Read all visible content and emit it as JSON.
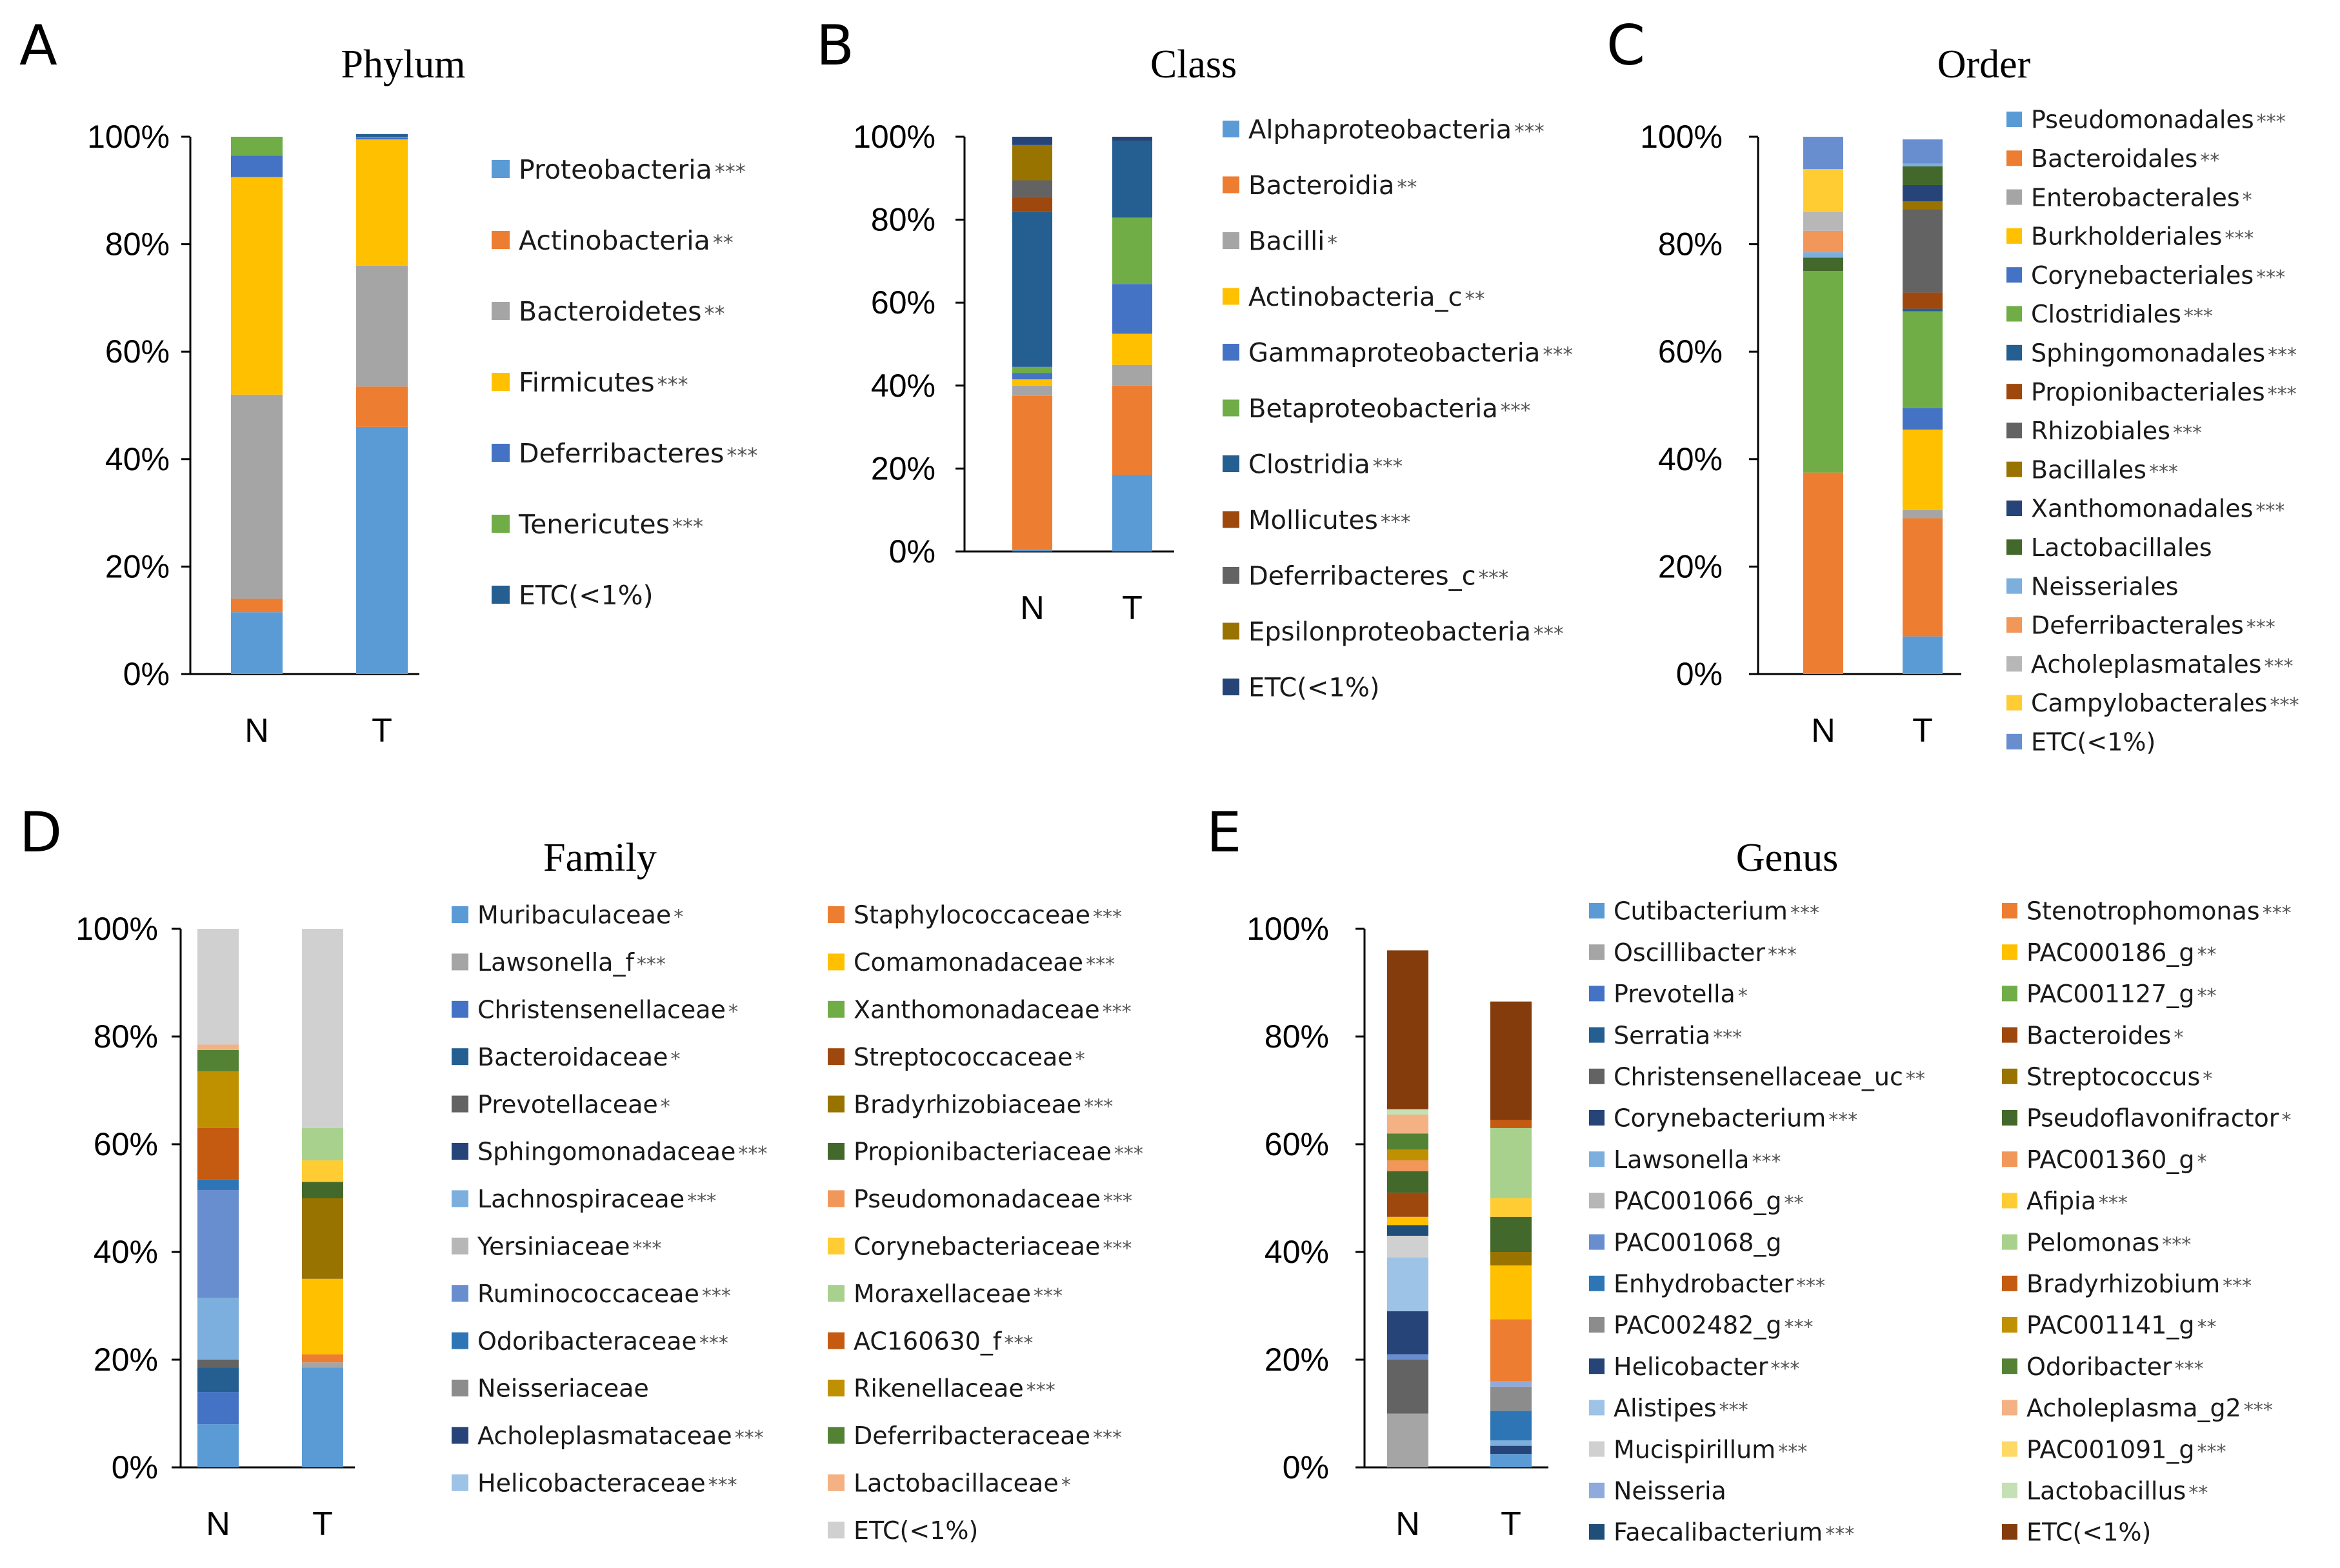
{
  "panel_labels": [
    "A",
    "B",
    "C",
    "D",
    "E"
  ],
  "colors": {
    "blue": "#5b9bd5",
    "orange": "#ed7d31",
    "gray": "#a5a5a5",
    "gold": "#ffc000",
    "royal": "#4472c4",
    "green": "#70ad47",
    "navy": "#255e91",
    "rust": "#9e480e",
    "dgray": "#636363",
    "olive": "#997300",
    "dnavy": "#264478",
    "dgreen": "#43682b",
    "lblue": "#7cafdd",
    "salmon": "#f1975a",
    "lgray": "#b7b7b7",
    "yellow": "#ffcd33",
    "periwinkle": "#698ed0",
    "mgray": "#8c8c8c",
    "sky": "#9dc3e6",
    "pale": "#d0d0d0",
    "lavender": "#8faadc",
    "teal": "#1f4e79",
    "peach": "#f4b183",
    "lgreen": "#a9d18e",
    "brown": "#843c0c",
    "lgold": "#ffd966",
    "blue2": "#2e75b6",
    "orange2": "#c55a11",
    "green2": "#548235",
    "gold2": "#bf9000"
  },
  "chart_data": [
    {
      "id": "A",
      "type": "bar",
      "stacked": true,
      "percent": true,
      "title": "Phylum",
      "categories": [
        "N",
        "T"
      ],
      "yticks": [
        "0%",
        "20%",
        "40%",
        "60%",
        "80%",
        "100%"
      ],
      "ylim": [
        0,
        100
      ],
      "legend_position": "right",
      "series": [
        {
          "name": "Proteobacteria",
          "sig": "***",
          "color": "#5b9bd5",
          "values": [
            11.5,
            46.0
          ]
        },
        {
          "name": "Actinobacteria",
          "sig": "**",
          "color": "#ed7d31",
          "values": [
            2.5,
            7.5
          ]
        },
        {
          "name": "Bacteroidetes",
          "sig": "**",
          "color": "#a5a5a5",
          "values": [
            38.0,
            22.5
          ]
        },
        {
          "name": "Firmicutes",
          "sig": "***",
          "color": "#ffc000",
          "values": [
            40.5,
            23.5
          ]
        },
        {
          "name": "Deferribacteres",
          "sig": "***",
          "color": "#4472c4",
          "values": [
            4.0,
            0.3
          ]
        },
        {
          "name": "Tenericutes",
          "sig": "***",
          "color": "#70ad47",
          "values": [
            3.5,
            0.1
          ]
        },
        {
          "name": "ETC(<1%)",
          "sig": "",
          "color": "#255e91",
          "values": [
            0.0,
            0.6
          ]
        }
      ]
    },
    {
      "id": "B",
      "type": "bar",
      "stacked": true,
      "percent": true,
      "title": "Class",
      "categories": [
        "N",
        "T"
      ],
      "yticks": [
        "0%",
        "20%",
        "40%",
        "60%",
        "80%",
        "100%"
      ],
      "ylim": [
        0,
        100
      ],
      "legend_position": "right",
      "series": [
        {
          "name": "Alphaproteobacteria",
          "sig": "***",
          "color": "#5b9bd5",
          "values": [
            0.5,
            18.5
          ]
        },
        {
          "name": "Bacteroidia",
          "sig": "**",
          "color": "#ed7d31",
          "values": [
            37.0,
            21.5
          ]
        },
        {
          "name": "Bacilli",
          "sig": "*",
          "color": "#a5a5a5",
          "values": [
            2.5,
            5.0
          ]
        },
        {
          "name": "Actinobacteria_c",
          "sig": "**",
          "color": "#ffc000",
          "values": [
            1.5,
            7.5
          ]
        },
        {
          "name": "Gammaproteobacteria",
          "sig": "***",
          "color": "#4472c4",
          "values": [
            1.5,
            12.0
          ]
        },
        {
          "name": "Betaproteobacteria",
          "sig": "***",
          "color": "#70ad47",
          "values": [
            1.5,
            16.0
          ]
        },
        {
          "name": "Clostridia",
          "sig": "***",
          "color": "#255e91",
          "values": [
            37.5,
            18.5
          ]
        },
        {
          "name": "Mollicutes",
          "sig": "***",
          "color": "#9e480e",
          "values": [
            3.5,
            0.0
          ]
        },
        {
          "name": "Deferribacteres_c",
          "sig": "***",
          "color": "#636363",
          "values": [
            4.0,
            0.0
          ]
        },
        {
          "name": "Epsilonproteobacteria",
          "sig": "***",
          "color": "#997300",
          "values": [
            8.5,
            0.0
          ]
        },
        {
          "name": "ETC(<1%)",
          "sig": "",
          "color": "#264478",
          "values": [
            2.0,
            1.0
          ]
        }
      ]
    },
    {
      "id": "C",
      "type": "bar",
      "stacked": true,
      "percent": true,
      "title": "Order",
      "categories": [
        "N",
        "T"
      ],
      "yticks": [
        "0%",
        "20%",
        "40%",
        "60%",
        "80%",
        "100%"
      ],
      "ylim": [
        0,
        100
      ],
      "legend_position": "right",
      "series": [
        {
          "name": "Pseudomonadales",
          "sig": "***",
          "color": "#5b9bd5",
          "values": [
            0.0,
            7.0
          ]
        },
        {
          "name": "Bacteroidales",
          "sig": "**",
          "color": "#ed7d31",
          "values": [
            37.5,
            22.0
          ]
        },
        {
          "name": "Enterobacterales",
          "sig": "*",
          "color": "#a5a5a5",
          "values": [
            0.0,
            1.5
          ]
        },
        {
          "name": "Burkholderiales",
          "sig": "***",
          "color": "#ffc000",
          "values": [
            0.0,
            15.0
          ]
        },
        {
          "name": "Corynebacteriales",
          "sig": "***",
          "color": "#4472c4",
          "values": [
            0.0,
            4.0
          ]
        },
        {
          "name": "Clostridiales",
          "sig": "***",
          "color": "#70ad47",
          "values": [
            37.5,
            18.0
          ]
        },
        {
          "name": "Sphingomonadales",
          "sig": "***",
          "color": "#255e91",
          "values": [
            0.0,
            0.5
          ]
        },
        {
          "name": "Propionibacteriales",
          "sig": "***",
          "color": "#9e480e",
          "values": [
            0.0,
            3.0
          ]
        },
        {
          "name": "Rhizobiales",
          "sig": "***",
          "color": "#636363",
          "values": [
            0.0,
            15.5
          ]
        },
        {
          "name": "Bacillales",
          "sig": "***",
          "color": "#997300",
          "values": [
            0.0,
            1.5
          ]
        },
        {
          "name": "Xanthomonadales",
          "sig": "***",
          "color": "#264478",
          "values": [
            0.0,
            3.0
          ]
        },
        {
          "name": "Lactobacillales",
          "sig": "",
          "color": "#43682b",
          "values": [
            2.5,
            3.5
          ]
        },
        {
          "name": "Neisseriales",
          "sig": "",
          "color": "#7cafdd",
          "values": [
            1.0,
            0.5
          ]
        },
        {
          "name": "Deferribacterales",
          "sig": "***",
          "color": "#f1975a",
          "values": [
            4.0,
            0.0
          ]
        },
        {
          "name": "Acholeplasmatales",
          "sig": "***",
          "color": "#b7b7b7",
          "values": [
            3.5,
            0.0
          ]
        },
        {
          "name": "Campylobacterales",
          "sig": "***",
          "color": "#ffcd33",
          "values": [
            8.0,
            0.0
          ]
        },
        {
          "name": "ETC(<1%)",
          "sig": "",
          "color": "#698ed0",
          "values": [
            6.0,
            4.5
          ]
        }
      ]
    },
    {
      "id": "D",
      "type": "bar",
      "stacked": true,
      "percent": true,
      "title": "Family",
      "categories": [
        "N",
        "T"
      ],
      "yticks": [
        "0%",
        "20%",
        "40%",
        "60%",
        "80%",
        "100%"
      ],
      "ylim": [
        0,
        100
      ],
      "legend_position": "right",
      "series": [
        {
          "name": "Muribaculaceae",
          "sig": "*",
          "color": "#5b9bd5",
          "values": [
            8.0,
            18.5
          ]
        },
        {
          "name": "Lawsonella_f",
          "sig": "***",
          "color": "#a5a5a5",
          "values": [
            0.0,
            1.0
          ]
        },
        {
          "name": "Christensenellaceae",
          "sig": "*",
          "color": "#4472c4",
          "values": [
            6.0,
            0.0
          ]
        },
        {
          "name": "Bacteroidaceae",
          "sig": "*",
          "color": "#255e91",
          "values": [
            4.5,
            0.0
          ]
        },
        {
          "name": "Prevotellaceae",
          "sig": "*",
          "color": "#636363",
          "values": [
            1.5,
            0.0
          ]
        },
        {
          "name": "Sphingomonadaceae",
          "sig": "***",
          "color": "#264478",
          "values": [
            0.0,
            0.0
          ]
        },
        {
          "name": "Lachnospiraceae",
          "sig": "***",
          "color": "#7cafdd",
          "values": [
            11.5,
            0.0
          ]
        },
        {
          "name": "Yersiniaceae",
          "sig": "***",
          "color": "#b7b7b7",
          "values": [
            0.0,
            0.0
          ]
        },
        {
          "name": "Ruminococcaceae",
          "sig": "***",
          "color": "#698ed0",
          "values": [
            20.0,
            0.0
          ]
        },
        {
          "name": "Odoribacteraceae",
          "sig": "***",
          "color": "#2e75b6",
          "values": [
            2.0,
            0.0
          ]
        },
        {
          "name": "Neisseriaceae",
          "sig": "",
          "color": "#8c8c8c",
          "values": [
            0.0,
            0.0
          ]
        },
        {
          "name": "Acholeplasmataceae",
          "sig": "***",
          "color": "#264478",
          "values": [
            0.0,
            0.0
          ]
        },
        {
          "name": "Helicobacteraceae",
          "sig": "***",
          "color": "#9dc3e6",
          "values": [
            0.0,
            0.0
          ]
        },
        {
          "name": "Staphylococcaceae",
          "sig": "***",
          "color": "#ed7d31",
          "values": [
            0.0,
            1.5
          ]
        },
        {
          "name": "Comamonadaceae",
          "sig": "***",
          "color": "#ffc000",
          "values": [
            0.0,
            14.0
          ]
        },
        {
          "name": "Xanthomonadaceae",
          "sig": "***",
          "color": "#70ad47",
          "values": [
            0.0,
            0.0
          ]
        },
        {
          "name": "Streptococcaceae",
          "sig": "*",
          "color": "#9e480e",
          "values": [
            0.0,
            0.0
          ]
        },
        {
          "name": "Bradyrhizobiaceae",
          "sig": "***",
          "color": "#997300",
          "values": [
            0.0,
            15.0
          ]
        },
        {
          "name": "Propionibacteriaceae",
          "sig": "***",
          "color": "#43682b",
          "values": [
            0.0,
            3.0
          ]
        },
        {
          "name": "Pseudomonadaceae",
          "sig": "***",
          "color": "#f1975a",
          "values": [
            0.0,
            0.0
          ]
        },
        {
          "name": "Corynebacteriaceae",
          "sig": "***",
          "color": "#ffcd33",
          "values": [
            0.0,
            4.0
          ]
        },
        {
          "name": "Moraxellaceae",
          "sig": "***",
          "color": "#a9d18e",
          "values": [
            0.0,
            6.0
          ]
        },
        {
          "name": "AC160630_f",
          "sig": "***",
          "color": "#c55a11",
          "values": [
            9.5,
            0.0
          ]
        },
        {
          "name": "Rikenellaceae",
          "sig": "***",
          "color": "#bf9000",
          "values": [
            10.5,
            0.0
          ]
        },
        {
          "name": "Deferribacteraceae",
          "sig": "***",
          "color": "#548235",
          "values": [
            4.0,
            0.0
          ]
        },
        {
          "name": "Lactobacillaceae",
          "sig": "*",
          "color": "#f4b183",
          "values": [
            1.0,
            0.0
          ]
        },
        {
          "name": "ETC(<1%)",
          "sig": "",
          "color": "#d0d0d0",
          "values": [
            21.5,
            37.0
          ]
        }
      ]
    },
    {
      "id": "E",
      "type": "bar",
      "stacked": true,
      "percent": true,
      "title": "Genus",
      "categories": [
        "N",
        "T"
      ],
      "yticks": [
        "0%",
        "20%",
        "40%",
        "60%",
        "80%",
        "100%"
      ],
      "ylim": [
        0,
        100
      ],
      "legend_position": "right",
      "series": [
        {
          "name": "Cutibacterium",
          "sig": "***",
          "color": "#5b9bd5",
          "values": [
            0.0,
            2.5
          ]
        },
        {
          "name": "Oscillibacter",
          "sig": "***",
          "color": "#a5a5a5",
          "values": [
            10.0,
            0.0
          ]
        },
        {
          "name": "Prevotella",
          "sig": "*",
          "color": "#4472c4",
          "values": [
            0.0,
            0.0
          ]
        },
        {
          "name": "Serratia",
          "sig": "***",
          "color": "#255e91",
          "values": [
            0.0,
            0.0
          ]
        },
        {
          "name": "Christensenellaceae_uc",
          "sig": "**",
          "color": "#636363",
          "values": [
            10.0,
            0.0
          ]
        },
        {
          "name": "Corynebacterium",
          "sig": "***",
          "color": "#264478",
          "values": [
            0.0,
            1.5
          ]
        },
        {
          "name": "Lawsonella",
          "sig": "***",
          "color": "#7cafdd",
          "values": [
            0.0,
            1.0
          ]
        },
        {
          "name": "PAC001066_g",
          "sig": "**",
          "color": "#b7b7b7",
          "values": [
            0.0,
            0.0
          ]
        },
        {
          "name": "PAC001068_g",
          "sig": "",
          "color": "#698ed0",
          "values": [
            1.0,
            0.0
          ]
        },
        {
          "name": "Enhydrobacter",
          "sig": "***",
          "color": "#2e75b6",
          "values": [
            0.0,
            5.5
          ]
        },
        {
          "name": "PAC002482_g",
          "sig": "***",
          "color": "#8c8c8c",
          "values": [
            0.0,
            4.5
          ]
        },
        {
          "name": "Helicobacter",
          "sig": "***",
          "color": "#264478",
          "values": [
            8.0,
            0.0
          ]
        },
        {
          "name": "Alistipes",
          "sig": "***",
          "color": "#9dc3e6",
          "values": [
            10.0,
            0.0
          ]
        },
        {
          "name": "Mucispirillum",
          "sig": "***",
          "color": "#d0d0d0",
          "values": [
            4.0,
            0.0
          ]
        },
        {
          "name": "Neisseria",
          "sig": "",
          "color": "#8faadc",
          "values": [
            0.0,
            1.0
          ]
        },
        {
          "name": "Faecalibacterium",
          "sig": "***",
          "color": "#1f4e79",
          "values": [
            2.0,
            0.0
          ]
        },
        {
          "name": "Stenotrophomonas",
          "sig": "***",
          "color": "#ed7d31",
          "values": [
            0.0,
            11.5
          ]
        },
        {
          "name": "PAC000186_g",
          "sig": "**",
          "color": "#ffc000",
          "values": [
            1.5,
            10.0
          ]
        },
        {
          "name": "PAC001127_g",
          "sig": "**",
          "color": "#70ad47",
          "values": [
            0.0,
            0.0
          ]
        },
        {
          "name": "Bacteroides",
          "sig": "*",
          "color": "#9e480e",
          "values": [
            4.5,
            0.0
          ]
        },
        {
          "name": "Streptococcus",
          "sig": "*",
          "color": "#997300",
          "values": [
            0.0,
            2.5
          ]
        },
        {
          "name": "Pseudoflavonifractor",
          "sig": "*",
          "color": "#43682b",
          "values": [
            4.0,
            6.5
          ]
        },
        {
          "name": "PAC001360_g",
          "sig": "*",
          "color": "#f1975a",
          "values": [
            2.0,
            0.0
          ]
        },
        {
          "name": "Afipia",
          "sig": "***",
          "color": "#ffcd33",
          "values": [
            0.0,
            3.5
          ]
        },
        {
          "name": "Pelomonas",
          "sig": "***",
          "color": "#a9d18e",
          "values": [
            0.0,
            13.0
          ]
        },
        {
          "name": "Bradyrhizobium",
          "sig": "***",
          "color": "#c55a11",
          "values": [
            0.0,
            1.5
          ]
        },
        {
          "name": "PAC001141_g",
          "sig": "**",
          "color": "#bf9000",
          "values": [
            2.0,
            0.0
          ]
        },
        {
          "name": "Odoribacter",
          "sig": "***",
          "color": "#548235",
          "values": [
            3.0,
            0.0
          ]
        },
        {
          "name": "Acholeplasma_g2",
          "sig": "***",
          "color": "#f4b183",
          "values": [
            3.5,
            0.0
          ]
        },
        {
          "name": "PAC001091_g",
          "sig": "***",
          "color": "#ffd966",
          "values": [
            0.0,
            0.0
          ]
        },
        {
          "name": "Lactobacillus",
          "sig": "**",
          "color": "#c5e0b4",
          "values": [
            1.0,
            0.0
          ]
        },
        {
          "name": "ETC(<1%)",
          "sig": "",
          "color": "#843c0c",
          "values": [
            29.5,
            22.0
          ]
        }
      ]
    }
  ]
}
